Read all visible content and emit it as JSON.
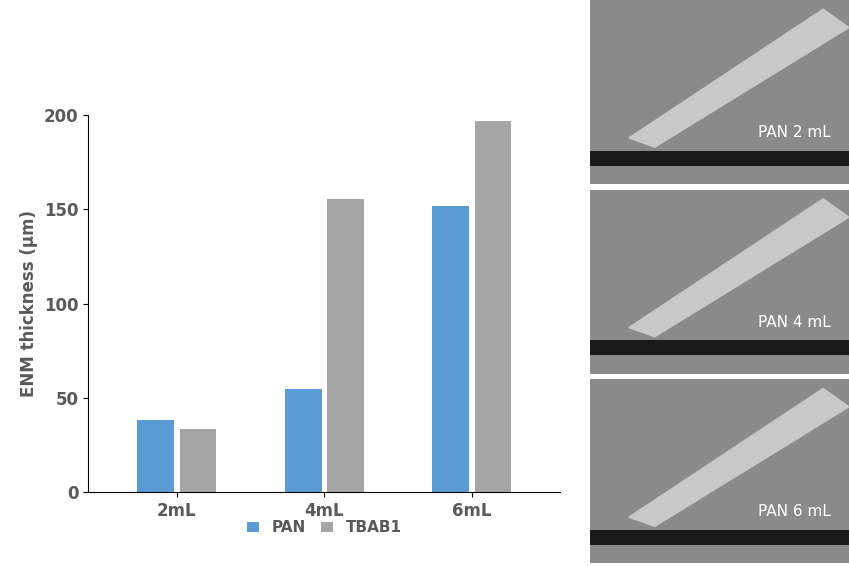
{
  "chart_data": {
    "type": "bar",
    "y_label": "ENM thickness (µm)",
    "categories": [
      "2mL",
      "4mL",
      "6mL"
    ],
    "series": [
      {
        "name": "PAN",
        "color": "#5b9bd5",
        "values": [
          38.5,
          55,
          151.5
        ]
      },
      {
        "name": "TBAB1",
        "color": "#a5a5a5",
        "values": [
          33.5,
          155.5,
          197
        ]
      }
    ],
    "ylim": [
      0,
      200
    ],
    "yticks": [
      0,
      50,
      100,
      150,
      200
    ],
    "grid": false,
    "legend": "lower center"
  },
  "images": [
    {
      "label": "PAN 2 mL"
    },
    {
      "label": "PAN 4 mL"
    },
    {
      "label": "PAN 6 mL"
    }
  ]
}
